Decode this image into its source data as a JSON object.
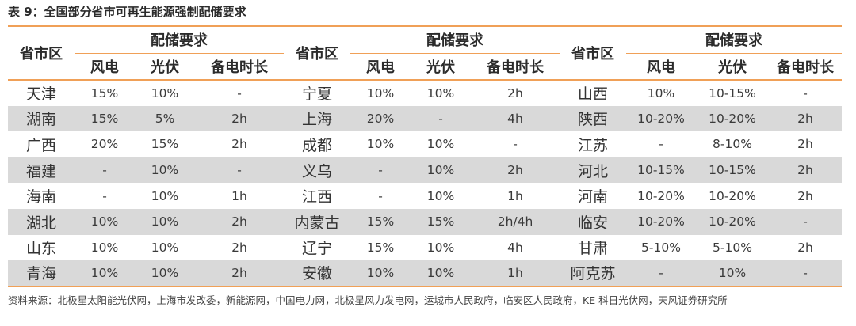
{
  "title": "表 9：全国部分省市可再生能源强制配储要求",
  "header": {
    "region": "省市区",
    "group": "配储要求",
    "wind": "风电",
    "solar": "光伏",
    "duration": "备电时长"
  },
  "groups": [
    {
      "rows": [
        {
          "region": "天津",
          "wind": "15%",
          "solar": "10%",
          "duration": "-"
        },
        {
          "region": "湖南",
          "wind": "15%",
          "solar": "5%",
          "duration": "2h"
        },
        {
          "region": "广西",
          "wind": "20%",
          "solar": "15%",
          "duration": "2h"
        },
        {
          "region": "福建",
          "wind": "-",
          "solar": "10%",
          "duration": "-"
        },
        {
          "region": "海南",
          "wind": "-",
          "solar": "10%",
          "duration": "1h"
        },
        {
          "region": "湖北",
          "wind": "10%",
          "solar": "10%",
          "duration": "2h"
        },
        {
          "region": "山东",
          "wind": "10%",
          "solar": "10%",
          "duration": "2h"
        },
        {
          "region": "青海",
          "wind": "10%",
          "solar": "10%",
          "duration": "2h"
        }
      ]
    },
    {
      "rows": [
        {
          "region": "宁夏",
          "wind": "10%",
          "solar": "10%",
          "duration": "2h"
        },
        {
          "region": "上海",
          "wind": "20%",
          "solar": "-",
          "duration": "4h"
        },
        {
          "region": "成都",
          "wind": "10%",
          "solar": "10%",
          "duration": "-"
        },
        {
          "region": "义乌",
          "wind": "-",
          "solar": "10%",
          "duration": "2h"
        },
        {
          "region": "江西",
          "wind": "-",
          "solar": "10%",
          "duration": "1h"
        },
        {
          "region": "内蒙古",
          "wind": "15%",
          "solar": "15%",
          "duration": "2h/4h"
        },
        {
          "region": "辽宁",
          "wind": "15%",
          "solar": "10%",
          "duration": "4h"
        },
        {
          "region": "安徽",
          "wind": "10%",
          "solar": "10%",
          "duration": "1h"
        }
      ]
    },
    {
      "rows": [
        {
          "region": "山西",
          "wind": "10%",
          "solar": "10-15%",
          "duration": "-"
        },
        {
          "region": "陕西",
          "wind": "10-20%",
          "solar": "10-20%",
          "duration": "2h"
        },
        {
          "region": "江苏",
          "wind": "-",
          "solar": "8-10%",
          "duration": "2h"
        },
        {
          "region": "河北",
          "wind": "10-15%",
          "solar": "10-15%",
          "duration": "2h"
        },
        {
          "region": "河南",
          "wind": "10-20%",
          "solar": "10-20%",
          "duration": "2h"
        },
        {
          "region": "临安",
          "wind": "10-20%",
          "solar": "10-20%",
          "duration": "-"
        },
        {
          "region": "甘肃",
          "wind": "5-10%",
          "solar": "5-10%",
          "duration": "2h"
        },
        {
          "region": "阿克苏",
          "wind": "-",
          "solar": "10%",
          "duration": "-"
        }
      ]
    }
  ],
  "source": "资料来源：北极星太阳能光伏网，上海市发改委，新能源网，中国电力网，北极星风力发电网，运城市人民政府，临安区人民政府，KE 科日光伏网，天风证券研究所",
  "colors": {
    "rule": "#f0a057",
    "row_shade": "#d9d9d9"
  }
}
